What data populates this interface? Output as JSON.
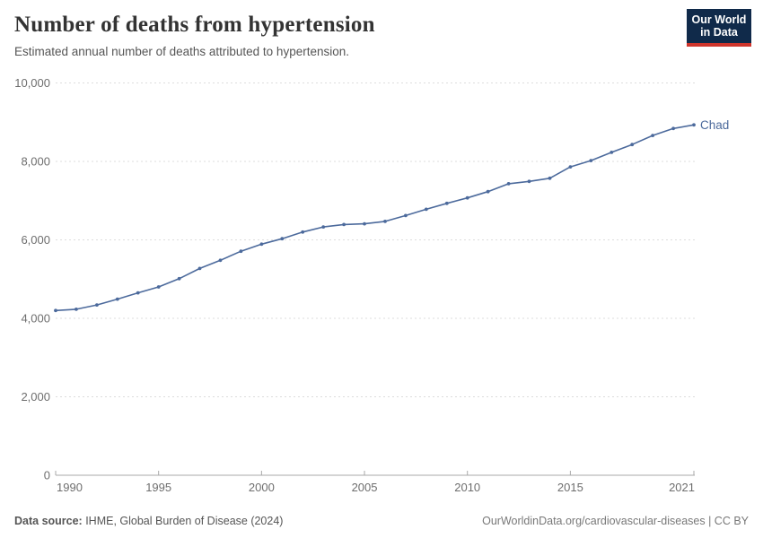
{
  "header": {
    "title": "Number of deaths from hypertension",
    "subtitle": "Estimated annual number of deaths attributed to hypertension.",
    "logo": {
      "line1": "Our World",
      "line2": "in Data",
      "bg_color": "#102a4a",
      "accent_color": "#cf352c"
    }
  },
  "chart_data": {
    "type": "line",
    "title": "Number of deaths from hypertension",
    "xlabel": "",
    "ylabel": "",
    "x": [
      1990,
      1991,
      1992,
      1993,
      1994,
      1995,
      1996,
      1997,
      1998,
      1999,
      2000,
      2001,
      2002,
      2003,
      2004,
      2005,
      2006,
      2007,
      2008,
      2009,
      2010,
      2011,
      2012,
      2013,
      2014,
      2015,
      2016,
      2017,
      2018,
      2019,
      2020,
      2021
    ],
    "series": [
      {
        "name": "Chad",
        "color": "#4C6A9C",
        "values": [
          4200,
          4230,
          4340,
          4490,
          4650,
          4800,
          5010,
          5270,
          5480,
          5710,
          5890,
          6030,
          6200,
          6330,
          6390,
          6410,
          6470,
          6620,
          6780,
          6930,
          7070,
          7230,
          7430,
          7490,
          7570,
          7860,
          8020,
          8230,
          8430,
          8660,
          8840,
          8930
        ]
      }
    ],
    "ylim": [
      0,
      10000
    ],
    "yticks": [
      0,
      2000,
      4000,
      6000,
      8000,
      10000
    ],
    "xticks": [
      1990,
      1995,
      2000,
      2005,
      2010,
      2015,
      2021
    ],
    "grid": "horizontal-dashed",
    "legend_position": "end-of-line-label",
    "marker": "circle"
  },
  "style_colors": {
    "gridline": "#dddddd",
    "axis": "#a8a8a8",
    "tick_label": "#6e6e6e"
  },
  "footer": {
    "source_label": "Data source:",
    "source_text": " IHME, Global Burden of Disease (2024)",
    "credit": "OurWorldinData.org/cardiovascular-diseases | CC BY"
  }
}
